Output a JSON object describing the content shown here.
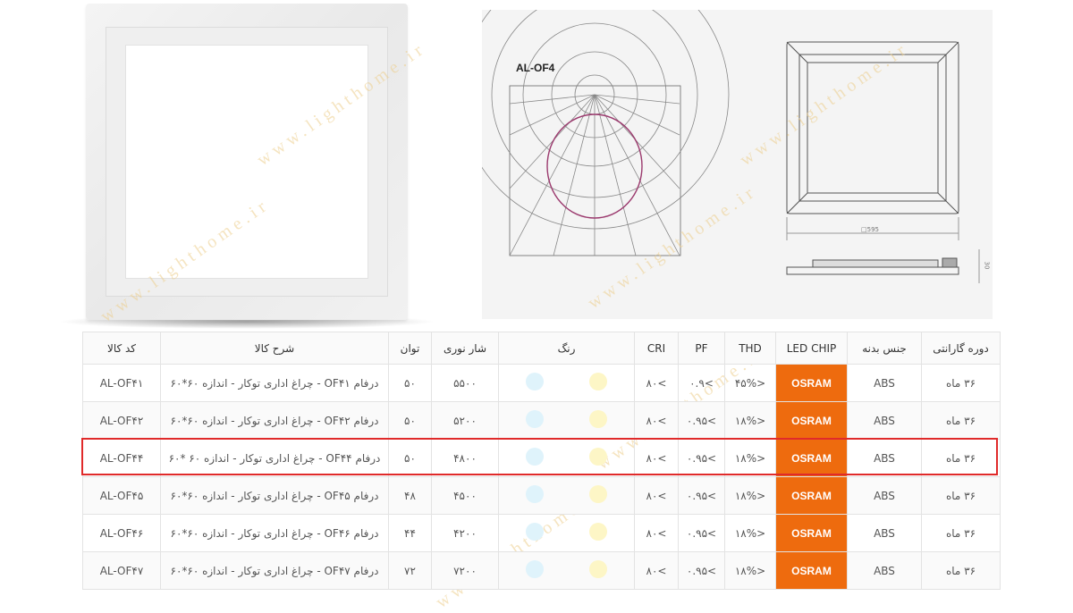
{
  "drawing": {
    "model_label": "AL-OF4",
    "dimension_label": "□595",
    "height_label": "30"
  },
  "watermark_text": "www.lighthome.ir",
  "table": {
    "headers": {
      "warranty": "دوره گارانتی",
      "body": "جنس بدنه",
      "chip": "LED CHIP",
      "thd": "THD",
      "pf": "PF",
      "cri": "CRI",
      "color": "رنگ",
      "flux": "شار نوری",
      "power": "توان",
      "desc": "شرح کالا",
      "code": "کد کالا"
    },
    "colors": {
      "cool": "#dff3fb",
      "warm": "#fdf6c6",
      "chip": "#ee6b0e",
      "highlight": "#e02a2a"
    },
    "rows": [
      {
        "warranty": "۳۶ ماه",
        "body": "ABS",
        "chip": "OSRAM",
        "thd": "<۴۵%",
        "pf": ">۰.۹",
        "cri": ">۸۰",
        "flux": "۵۵۰۰",
        "power": "۵۰",
        "desc": "درفام OF۴۱ - چراغ اداری توکار - اندازه ۶۰*۶۰",
        "code": "AL-OF۴۱"
      },
      {
        "warranty": "۳۶ ماه",
        "body": "ABS",
        "chip": "OSRAM",
        "thd": "<۱۸%",
        "pf": ">۰.۹۵",
        "cri": ">۸۰",
        "flux": "۵۲۰۰",
        "power": "۵۰",
        "desc": "درفام OF۴۲ - چراغ اداری توکار - اندازه ۶۰*۶۰",
        "code": "AL-OF۴۲"
      },
      {
        "warranty": "۳۶ ماه",
        "body": "ABS",
        "chip": "OSRAM",
        "thd": "<۱۸%",
        "pf": ">۰.۹۵",
        "cri": ">۸۰",
        "flux": "۴۸۰۰",
        "power": "۵۰",
        "desc": "درفام OF۴۴ - چراغ اداری توکار - اندازه ۶۰ *۶۰",
        "code": "AL-OF۴۴"
      },
      {
        "warranty": "۳۶ ماه",
        "body": "ABS",
        "chip": "OSRAM",
        "thd": "<۱۸%",
        "pf": ">۰.۹۵",
        "cri": ">۸۰",
        "flux": "۴۵۰۰",
        "power": "۴۸",
        "desc": "درفام OF۴۵ - چراغ اداری توکار - اندازه ۶۰*۶۰",
        "code": "AL-OF۴۵"
      },
      {
        "warranty": "۳۶ ماه",
        "body": "ABS",
        "chip": "OSRAM",
        "thd": "<۱۸%",
        "pf": ">۰.۹۵",
        "cri": ">۸۰",
        "flux": "۴۲۰۰",
        "power": "۴۴",
        "desc": "درفام OF۴۶ - چراغ اداری توکار - اندازه ۶۰*۶۰",
        "code": "AL-OF۴۶"
      },
      {
        "warranty": "۳۶ ماه",
        "body": "ABS",
        "chip": "OSRAM",
        "thd": "<۱۸%",
        "pf": ">۰.۹۵",
        "cri": ">۸۰",
        "flux": "۷۲۰۰",
        "power": "۷۲",
        "desc": "درفام OF۴۷ - چراغ اداری توکار - اندازه ۶۰*۶۰",
        "code": "AL-OF۴۷"
      }
    ]
  }
}
